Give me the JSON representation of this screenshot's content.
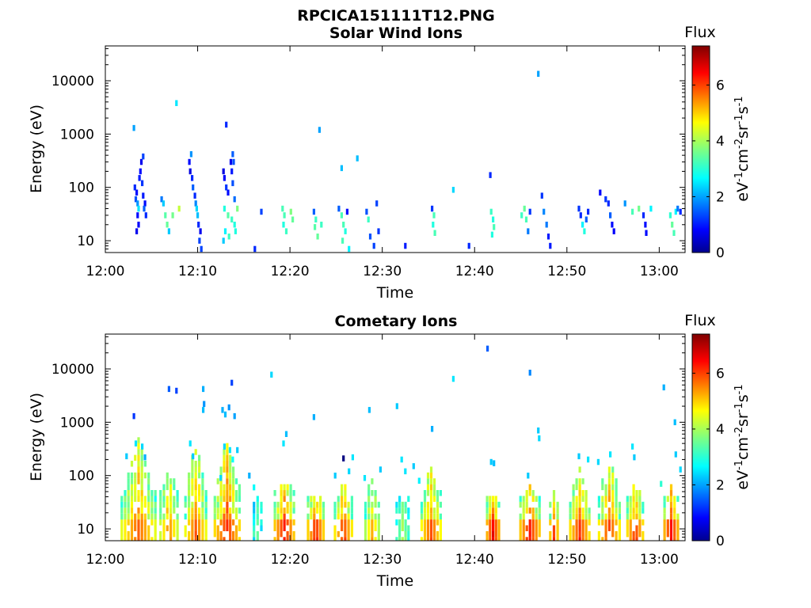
{
  "figure_title": "RPCICA151111T12.PNG",
  "chart_data": [
    {
      "type": "heatmap",
      "title": "Solar Wind Ions",
      "xlabel": "Time",
      "ylabel": "Energy (eV)",
      "x_ticks": [
        "12:00",
        "12:10",
        "12:20",
        "12:30",
        "12:40",
        "12:50",
        "13:00"
      ],
      "x_tick_minutes": [
        0,
        10,
        20,
        30,
        40,
        50,
        60
      ],
      "xlim_minutes": [
        0,
        62.8
      ],
      "y_ticks": [
        "10",
        "100",
        "1000",
        "10000"
      ],
      "y_tick_values": [
        10,
        100,
        1000,
        10000
      ],
      "ylim": [
        6,
        45000
      ],
      "y_scale": "log",
      "grid": false,
      "colorbar": {
        "title": "Flux",
        "label": "eV-1cm-2sr-1s-1",
        "ticks": [
          0,
          2,
          4,
          6
        ],
        "range": [
          0,
          7.4
        ]
      },
      "cells": [
        [
          3.2,
          100,
          1.2
        ],
        [
          3.4,
          80,
          1.0
        ],
        [
          3.3,
          60,
          1.5
        ],
        [
          3.5,
          50,
          2.0
        ],
        [
          3.6,
          40,
          2.6
        ],
        [
          3.5,
          30,
          1.0
        ],
        [
          3.6,
          20,
          0.9
        ],
        [
          3.4,
          15,
          0.8
        ],
        [
          3.7,
          150,
          1.1
        ],
        [
          3.9,
          300,
          0.8
        ],
        [
          3.8,
          200,
          1.0
        ],
        [
          4.0,
          120,
          1.3
        ],
        [
          4.1,
          70,
          1.1
        ],
        [
          4.3,
          50,
          1.0
        ],
        [
          4.2,
          40,
          1.6
        ],
        [
          4.4,
          30,
          1.2
        ],
        [
          6.1,
          60,
          1.8
        ],
        [
          6.3,
          50,
          2.4
        ],
        [
          6.5,
          30,
          3.4
        ],
        [
          6.7,
          20,
          3.5
        ],
        [
          6.9,
          15,
          2.4
        ],
        [
          7.3,
          30,
          3.6
        ],
        [
          8.0,
          40,
          4.2
        ],
        [
          9.1,
          300,
          1.0
        ],
        [
          9.2,
          200,
          0.7
        ],
        [
          9.4,
          150,
          1.2
        ],
        [
          9.5,
          100,
          1.6
        ],
        [
          9.7,
          70,
          1.2
        ],
        [
          9.8,
          50,
          1.9
        ],
        [
          9.9,
          40,
          2.5
        ],
        [
          10.0,
          30,
          2.3
        ],
        [
          10.1,
          20,
          1.2
        ],
        [
          10.3,
          15,
          0.8
        ],
        [
          10.2,
          10,
          1.4
        ],
        [
          10.4,
          7,
          1.4
        ],
        [
          12.8,
          200,
          0.7
        ],
        [
          12.9,
          150,
          0.9
        ],
        [
          13.1,
          100,
          1.3
        ],
        [
          13.3,
          80,
          1.0
        ],
        [
          13.6,
          300,
          0.8
        ],
        [
          13.7,
          200,
          1.1
        ],
        [
          13.8,
          120,
          1.5
        ],
        [
          14.0,
          60,
          1.7
        ],
        [
          12.9,
          40,
          3.0
        ],
        [
          13.3,
          30,
          3.4
        ],
        [
          13.7,
          25,
          3.2
        ],
        [
          14.0,
          20,
          3.0
        ],
        [
          14.3,
          40,
          3.7
        ],
        [
          13.0,
          15,
          2.7
        ],
        [
          13.4,
          12,
          3.2
        ],
        [
          14.1,
          15,
          3.0
        ],
        [
          12.8,
          10,
          2.4
        ],
        [
          16.2,
          7,
          1.2
        ],
        [
          16.9,
          35,
          1.4
        ],
        [
          19.2,
          40,
          3.3
        ],
        [
          19.4,
          30,
          3.3
        ],
        [
          19.3,
          20,
          3.0
        ],
        [
          19.6,
          15,
          3.2
        ],
        [
          20.1,
          35,
          3.7
        ],
        [
          20.3,
          25,
          3.5
        ],
        [
          22.6,
          35,
          1.6
        ],
        [
          22.8,
          25,
          3.2
        ],
        [
          22.7,
          18,
          3.4
        ],
        [
          23.0,
          12,
          3.5
        ],
        [
          23.4,
          20,
          3.2
        ],
        [
          25.3,
          40,
          1.6
        ],
        [
          25.6,
          30,
          3.3
        ],
        [
          25.8,
          20,
          3.3
        ],
        [
          26.0,
          15,
          3.0
        ],
        [
          25.7,
          10,
          3.3
        ],
        [
          26.2,
          35,
          1.0
        ],
        [
          26.4,
          7,
          2.7
        ],
        [
          28.3,
          35,
          1.5
        ],
        [
          28.5,
          25,
          3.2
        ],
        [
          28.7,
          12,
          1.5
        ],
        [
          29.4,
          50,
          1.4
        ],
        [
          29.1,
          8,
          1.4
        ],
        [
          29.6,
          15,
          1.3
        ],
        [
          32.5,
          8,
          1.1
        ],
        [
          35.4,
          40,
          1.3
        ],
        [
          35.6,
          30,
          3.3
        ],
        [
          35.5,
          20,
          3.0
        ],
        [
          35.7,
          14,
          3.3
        ],
        [
          39.4,
          8,
          1.2
        ],
        [
          41.8,
          35,
          3.2
        ],
        [
          42.0,
          25,
          3.0
        ],
        [
          42.1,
          18,
          3.3
        ],
        [
          41.9,
          13,
          3.0
        ],
        [
          45.1,
          30,
          3.2
        ],
        [
          45.4,
          40,
          3.5
        ],
        [
          45.6,
          25,
          3.3
        ],
        [
          45.8,
          15,
          1.8
        ],
        [
          46.0,
          35,
          1.3
        ],
        [
          47.5,
          35,
          1.9
        ],
        [
          47.8,
          20,
          1.8
        ],
        [
          48.0,
          12,
          1.1
        ],
        [
          48.2,
          8,
          1.1
        ],
        [
          51.3,
          40,
          1.3
        ],
        [
          51.5,
          30,
          1.2
        ],
        [
          51.7,
          20,
          2.7
        ],
        [
          51.9,
          15,
          3.0
        ],
        [
          52.1,
          25,
          1.6
        ],
        [
          52.3,
          35,
          1.2
        ],
        [
          53.6,
          80,
          0.9
        ],
        [
          54.2,
          60,
          1.3
        ],
        [
          54.5,
          50,
          1.2
        ],
        [
          54.7,
          30,
          1.6
        ],
        [
          54.9,
          20,
          1.0
        ],
        [
          55.1,
          15,
          0.9
        ],
        [
          57.1,
          35,
          3.3
        ],
        [
          57.8,
          40,
          3.6
        ],
        [
          58.3,
          30,
          1.2
        ],
        [
          58.5,
          20,
          1.0
        ],
        [
          58.6,
          14,
          1.0
        ],
        [
          61.2,
          30,
          3.1
        ],
        [
          61.4,
          20,
          3.5
        ],
        [
          61.6,
          14,
          3.3
        ],
        [
          61.8,
          35,
          2.7
        ],
        [
          62.0,
          40,
          1.8
        ],
        [
          62.3,
          35,
          1.2
        ]
      ],
      "specks": [
        [
          3.1,
          1300,
          2.1
        ],
        [
          4.1,
          380,
          1.4
        ],
        [
          7.7,
          3800,
          2.6
        ],
        [
          9.3,
          420,
          2.0
        ],
        [
          13.1,
          1500,
          1.2
        ],
        [
          13.8,
          420,
          1.6
        ],
        [
          13.9,
          300,
          1.5
        ],
        [
          23.2,
          1200,
          2.1
        ],
        [
          25.6,
          230,
          2.3
        ],
        [
          27.3,
          350,
          2.3
        ],
        [
          37.7,
          90,
          2.5
        ],
        [
          41.7,
          170,
          1.2
        ],
        [
          46.9,
          13500,
          2.1
        ],
        [
          47.3,
          70,
          1.3
        ],
        [
          59.1,
          40,
          2.7
        ],
        [
          56.3,
          50,
          2.0
        ]
      ]
    },
    {
      "type": "heatmap",
      "title": "Cometary Ions",
      "xlabel": "Time",
      "ylabel": "Energy (eV)",
      "x_ticks": [
        "12:00",
        "12:10",
        "12:20",
        "12:30",
        "12:40",
        "12:50",
        "13:00"
      ],
      "x_tick_minutes": [
        0,
        10,
        20,
        30,
        40,
        50,
        60
      ],
      "xlim_minutes": [
        0,
        62.8
      ],
      "y_ticks": [
        "10",
        "100",
        "1000",
        "10000"
      ],
      "y_tick_values": [
        10,
        100,
        1000,
        10000
      ],
      "ylim": [
        6,
        45000
      ],
      "y_scale": "log",
      "grid": false,
      "colorbar": {
        "title": "Flux",
        "label": "eV-1cm-2sr-1s-1",
        "ticks": [
          0,
          2,
          4,
          6
        ],
        "range": [
          0,
          7.4
        ]
      },
      "bursts": [
        [
          3.6,
          4.0,
          420,
          5.6,
          5.8
        ],
        [
          6.9,
          2.2,
          120,
          5.4,
          5.5
        ],
        [
          9.8,
          2.6,
          400,
          5.6,
          5.8
        ],
        [
          13.2,
          3.0,
          500,
          6.1,
          6.2
        ],
        [
          16.5,
          1.2,
          40,
          3.3,
          3.5
        ],
        [
          19.4,
          2.4,
          100,
          6.1,
          6.3
        ],
        [
          22.8,
          2.0,
          50,
          6.0,
          6.2
        ],
        [
          25.8,
          2.2,
          60,
          5.8,
          6.0
        ],
        [
          28.9,
          1.8,
          100,
          4.8,
          5.2
        ],
        [
          32.2,
          1.6,
          50,
          3.6,
          4.0
        ],
        [
          35.3,
          2.4,
          150,
          5.6,
          5.9
        ],
        [
          42.0,
          1.6,
          45,
          6.2,
          6.4
        ],
        [
          46.0,
          2.4,
          60,
          6.0,
          6.3
        ],
        [
          48.6,
          1.2,
          40,
          5.6,
          6.0
        ],
        [
          51.4,
          2.4,
          150,
          5.8,
          6.1
        ],
        [
          54.6,
          2.6,
          160,
          5.8,
          6.0
        ],
        [
          57.4,
          2.0,
          100,
          5.8,
          6.1
        ],
        [
          61.3,
          1.8,
          60,
          6.3,
          6.4
        ]
      ],
      "cells": [
        [
          2.3,
          230,
          2.4
        ],
        [
          3.3,
          400,
          2.6
        ],
        [
          4.0,
          350,
          2.5
        ],
        [
          4.3,
          220,
          2.2
        ],
        [
          9.2,
          400,
          2.6
        ],
        [
          9.5,
          230,
          2.4
        ],
        [
          12.9,
          350,
          2.5
        ],
        [
          13.5,
          300,
          2.6
        ],
        [
          13.8,
          200,
          2.8
        ],
        [
          14.3,
          300,
          2.4
        ],
        [
          15.6,
          100,
          2.2
        ],
        [
          16.1,
          60,
          2.8
        ],
        [
          19.3,
          400,
          2.6
        ],
        [
          19.6,
          600,
          2.3
        ],
        [
          24.9,
          100,
          2.4
        ],
        [
          26.4,
          120,
          2.5
        ],
        [
          29.8,
          130,
          2.4
        ],
        [
          32.1,
          200,
          2.6
        ],
        [
          32.5,
          120,
          2.6
        ],
        [
          33.4,
          150,
          2.4
        ],
        [
          34.0,
          80,
          2.7
        ],
        [
          41.8,
          180,
          2.4
        ],
        [
          42.1,
          170,
          2.3
        ],
        [
          45.8,
          100,
          2.4
        ],
        [
          46.9,
          700,
          2.4
        ],
        [
          47.0,
          500,
          2.5
        ],
        [
          51.3,
          230,
          2.4
        ],
        [
          52.3,
          200,
          2.6
        ],
        [
          53.4,
          180,
          2.5
        ],
        [
          54.7,
          250,
          2.6
        ],
        [
          57.1,
          350,
          2.6
        ],
        [
          57.3,
          220,
          2.4
        ],
        [
          61.8,
          250,
          2.4
        ],
        [
          62.3,
          130,
          2.5
        ],
        [
          60.2,
          70,
          3.1
        ],
        [
          28.1,
          90,
          2.6
        ]
      ],
      "specks": [
        [
          3.1,
          1300,
          1.3
        ],
        [
          6.9,
          4200,
          1.6
        ],
        [
          7.7,
          3900,
          1.4
        ],
        [
          10.6,
          4200,
          2.2
        ],
        [
          10.7,
          2200,
          2.0
        ],
        [
          10.6,
          1700,
          2.3
        ],
        [
          12.7,
          1700,
          2.2
        ],
        [
          13.4,
          1900,
          2.0
        ],
        [
          13.0,
          1400,
          2.3
        ],
        [
          13.7,
          5500,
          1.4
        ],
        [
          14.0,
          1300,
          2.1
        ],
        [
          18.0,
          7800,
          2.5
        ],
        [
          22.6,
          1250,
          2.2
        ],
        [
          25.8,
          210,
          0.0
        ],
        [
          28.6,
          1700,
          2.3
        ],
        [
          31.6,
          2000,
          2.4
        ],
        [
          35.4,
          750,
          2.2
        ],
        [
          37.7,
          6500,
          2.6
        ],
        [
          41.4,
          24000,
          1.6
        ],
        [
          46.0,
          8500,
          1.9
        ],
        [
          60.5,
          4500,
          2.2
        ],
        [
          61.7,
          1000,
          2.3
        ],
        [
          26.8,
          220,
          2.6
        ],
        [
          12.5,
          90,
          2.5
        ]
      ]
    }
  ]
}
